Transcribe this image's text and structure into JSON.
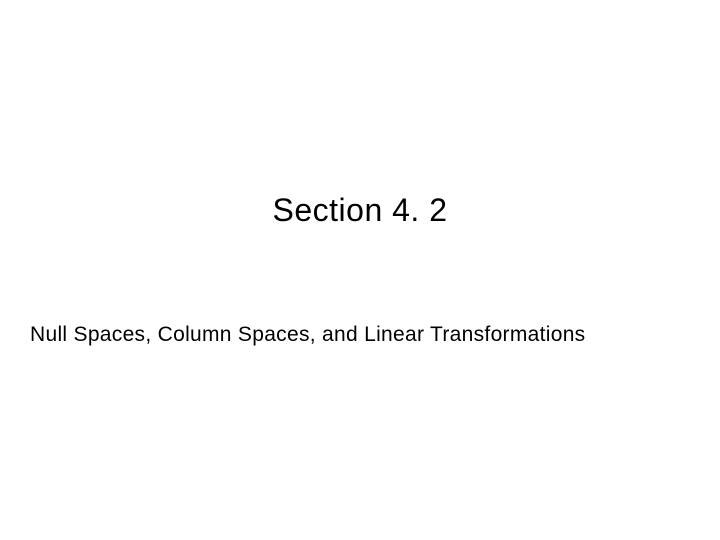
{
  "slide": {
    "title": "Section 4. 2",
    "subtitle": "Null Spaces, Column Spaces, and Linear Transformations",
    "background_color": "#ffffff",
    "text_color": "#000000",
    "title_fontsize": 32,
    "subtitle_fontsize": 21,
    "font_family": "Arial"
  }
}
